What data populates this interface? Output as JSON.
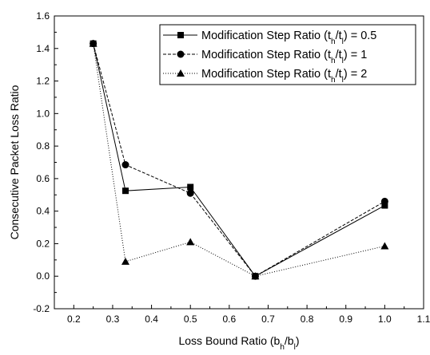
{
  "chart_data": {
    "type": "line",
    "x": [
      0.25,
      0.333,
      0.5,
      0.667,
      1.0
    ],
    "series": [
      {
        "name": "Modification Step Ratio (t_h/t_l) = 0.5",
        "legend": {
          "pre": "Modification Step Ratio (t",
          "sub1": "h",
          "mid": "/t",
          "sub2": "l",
          "post": ") = 0.5"
        },
        "marker": "square",
        "dash": "solid",
        "values": [
          1.43,
          0.525,
          0.548,
          0.0,
          0.435
        ]
      },
      {
        "name": "Modification Step Ratio (t_h/t_l) = 1",
        "legend": {
          "pre": "Modification Step Ratio (t",
          "sub1": "h",
          "mid": "/t",
          "sub2": "l",
          "post": ") = 1"
        },
        "marker": "circle",
        "dash": "dashed",
        "values": [
          1.43,
          0.685,
          0.51,
          0.0,
          0.46
        ]
      },
      {
        "name": "Modification Step Ratio (t_h/t_l) = 2",
        "legend": {
          "pre": "Modification Step Ratio (t",
          "sub1": "h",
          "mid": "/t",
          "sub2": "l",
          "post": ") = 2"
        },
        "marker": "triangle",
        "dash": "dotted",
        "values": [
          1.43,
          0.09,
          0.21,
          0.0,
          0.185
        ]
      }
    ],
    "xlabel": {
      "pre": "Loss Bound Ratio (b",
      "sub1": "h",
      "mid": "/b",
      "sub2": "l",
      "post": ")"
    },
    "ylabel": "Consecutive Packet Loss Ratio",
    "xlim": [
      0.15,
      1.1
    ],
    "ylim": [
      -0.2,
      1.6
    ],
    "xticks": [
      "0.2",
      "0.3",
      "0.4",
      "0.5",
      "0.6",
      "0.7",
      "0.8",
      "0.9",
      "1.0",
      "1.1"
    ],
    "yticks": [
      "-0.2",
      "0.0",
      "0.2",
      "0.4",
      "0.6",
      "0.8",
      "1.0",
      "1.2",
      "1.4",
      "1.6"
    ],
    "grid": false,
    "legend_position": "top-right"
  }
}
